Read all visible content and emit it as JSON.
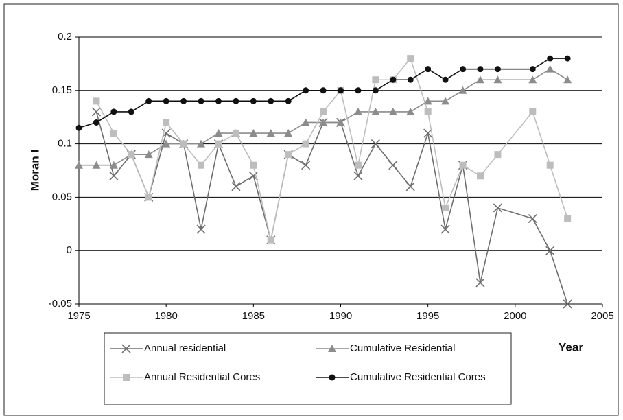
{
  "chart_data": {
    "type": "line",
    "x_label": "Year",
    "y_label": "Moran I",
    "x": [
      1975,
      1976,
      1977,
      1978,
      1979,
      1980,
      1981,
      1982,
      1983,
      1984,
      1985,
      1986,
      1987,
      1988,
      1989,
      1990,
      1991,
      1992,
      1993,
      1994,
      1995,
      1996,
      1997,
      1998,
      1999,
      2001,
      2002,
      2003
    ],
    "series": [
      {
        "name": "Annual residential",
        "color": "#6e6e6e",
        "marker": "x",
        "values": [
          null,
          0.13,
          0.07,
          0.09,
          0.05,
          0.11,
          0.1,
          0.02,
          0.1,
          0.06,
          0.07,
          0.01,
          0.09,
          0.08,
          0.12,
          0.12,
          0.07,
          0.1,
          0.08,
          0.06,
          0.11,
          0.02,
          0.08,
          -0.03,
          0.04,
          0.03,
          0.0,
          -0.05
        ]
      },
      {
        "name": "Cumulative Residential",
        "color": "#8c8c8c",
        "marker": "triangle",
        "values": [
          0.08,
          0.08,
          0.08,
          0.09,
          0.09,
          0.1,
          0.1,
          0.1,
          0.11,
          0.11,
          0.11,
          0.11,
          0.11,
          0.12,
          0.12,
          0.12,
          0.13,
          0.13,
          0.13,
          0.13,
          0.14,
          0.14,
          0.15,
          0.16,
          0.16,
          0.16,
          0.17,
          0.16
        ]
      },
      {
        "name": "Annual Residential Cores",
        "color": "#bdbdbd",
        "marker": "square",
        "values": [
          null,
          0.14,
          0.11,
          0.09,
          0.05,
          0.12,
          0.1,
          0.08,
          0.1,
          0.11,
          0.08,
          0.01,
          0.09,
          0.1,
          0.13,
          0.15,
          0.08,
          0.16,
          0.16,
          0.18,
          0.13,
          0.04,
          0.08,
          0.07,
          0.09,
          0.13,
          0.08,
          0.03
        ]
      },
      {
        "name": "Cumulative Residential Cores",
        "color": "#111111",
        "marker": "circle",
        "values": [
          0.115,
          0.12,
          0.13,
          0.13,
          0.14,
          0.14,
          0.14,
          0.14,
          0.14,
          0.14,
          0.14,
          0.14,
          0.14,
          0.15,
          0.15,
          0.15,
          0.15,
          0.15,
          0.16,
          0.16,
          0.17,
          0.16,
          0.17,
          0.17,
          0.17,
          0.17,
          0.18,
          0.18
        ]
      }
    ],
    "xlim": [
      1975,
      2005
    ],
    "xticks": [
      1975,
      1980,
      1985,
      1990,
      1995,
      2000,
      2005
    ],
    "ylim": [
      -0.05,
      0.2
    ],
    "yticks": [
      -0.05,
      0,
      0.05,
      0.1,
      0.15,
      0.2
    ],
    "grid": true
  }
}
